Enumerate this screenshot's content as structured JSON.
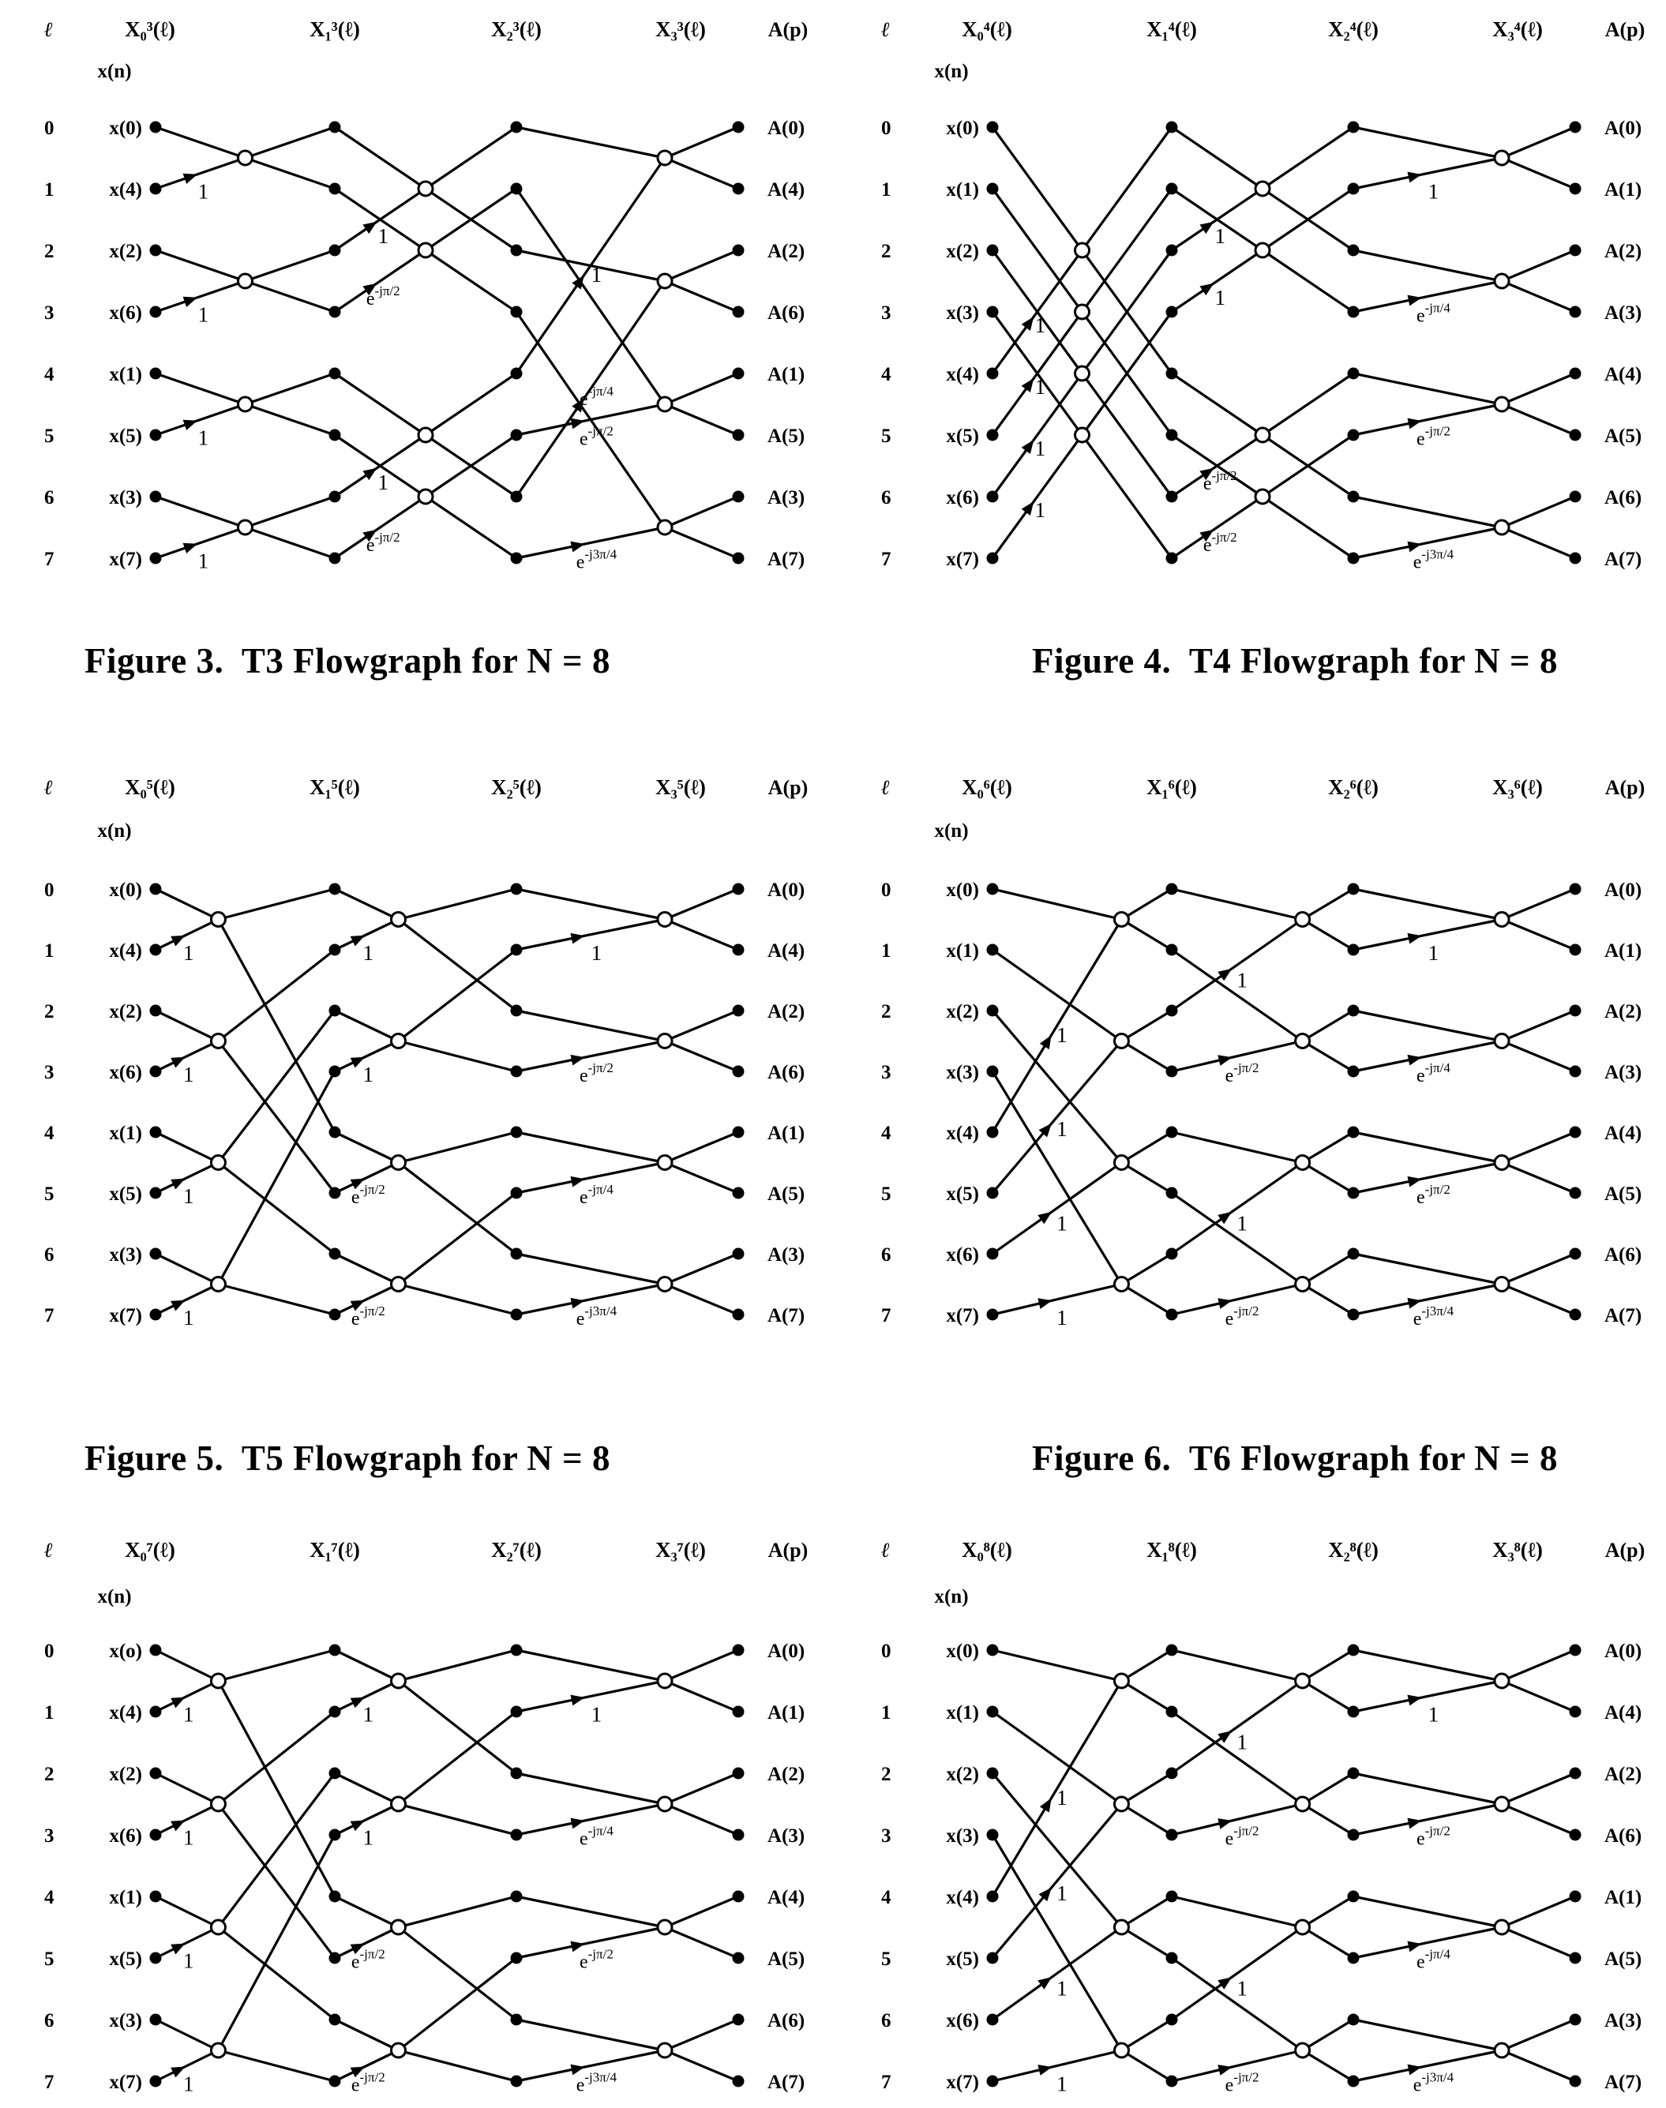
{
  "page": {
    "background": "#ffffff",
    "ink": "#000000"
  },
  "figures": [
    {
      "id": "fig3",
      "caption": "Figure 3.  T3 Flowgraph for N = 8",
      "header": {
        "ell": "ℓ",
        "xn": "x(n)",
        "ap": "A(p)",
        "stages": [
          "X₀³(ℓ)",
          "X₁³(ℓ)",
          "X₂³(ℓ)",
          "X₃³(ℓ)"
        ]
      },
      "row_indices": [
        "0",
        "1",
        "2",
        "3",
        "4",
        "5",
        "6",
        "7"
      ],
      "inputs": [
        "x(0)",
        "x(4)",
        "x(2)",
        "x(6)",
        "x(1)",
        "x(5)",
        "x(3)",
        "x(7)"
      ],
      "outputs": [
        "A(0)",
        "A(4)",
        "A(2)",
        "A(6)",
        "A(1)",
        "A(5)",
        "A(3)",
        "A(7)"
      ],
      "butterflies": [
        [
          {
            "a": 0,
            "b": 1,
            "oa": 0,
            "ob": 1,
            "w": "1"
          },
          {
            "a": 2,
            "b": 3,
            "oa": 2,
            "ob": 3,
            "w": "1"
          },
          {
            "a": 4,
            "b": 5,
            "oa": 4,
            "ob": 5,
            "w": "1"
          },
          {
            "a": 6,
            "b": 7,
            "oa": 6,
            "ob": 7,
            "w": "1"
          }
        ],
        [
          {
            "a": 0,
            "b": 2,
            "oa": 0,
            "ob": 2,
            "w": "1"
          },
          {
            "a": 1,
            "b": 3,
            "oa": 1,
            "ob": 3,
            "w": "e^{-jπ/2}"
          },
          {
            "a": 4,
            "b": 6,
            "oa": 4,
            "ob": 6,
            "w": "1"
          },
          {
            "a": 5,
            "b": 7,
            "oa": 5,
            "ob": 7,
            "w": "e^{-jπ/2}"
          }
        ],
        [
          {
            "a": 0,
            "b": 4,
            "oa": 0,
            "ob": 1,
            "w": "1"
          },
          {
            "a": 2,
            "b": 6,
            "oa": 2,
            "ob": 3,
            "w": "e^{-jπ/4}"
          },
          {
            "a": 1,
            "b": 5,
            "oa": 4,
            "ob": 5,
            "w": "e^{-jπ/2}"
          },
          {
            "a": 3,
            "b": 7,
            "oa": 6,
            "ob": 7,
            "w": "e^{-j3π/4}"
          }
        ]
      ]
    },
    {
      "id": "fig4",
      "caption": "Figure 4.  T4 Flowgraph for N = 8",
      "header": {
        "ell": "ℓ",
        "xn": "x(n)",
        "ap": "A(p)",
        "stages": [
          "X₀⁴(ℓ)",
          "X₁⁴(ℓ)",
          "X₂⁴(ℓ)",
          "X₃⁴(ℓ)"
        ]
      },
      "row_indices": [
        "0",
        "1",
        "2",
        "3",
        "4",
        "5",
        "6",
        "7"
      ],
      "inputs": [
        "x(0)",
        "x(1)",
        "x(2)",
        "x(3)",
        "x(4)",
        "x(5)",
        "x(6)",
        "x(7)"
      ],
      "outputs": [
        "A(0)",
        "A(1)",
        "A(2)",
        "A(3)",
        "A(4)",
        "A(5)",
        "A(6)",
        "A(7)"
      ],
      "butterflies": [
        [
          {
            "a": 0,
            "b": 4,
            "oa": 0,
            "ob": 4,
            "w": "1"
          },
          {
            "a": 1,
            "b": 5,
            "oa": 1,
            "ob": 5,
            "w": "1"
          },
          {
            "a": 2,
            "b": 6,
            "oa": 2,
            "ob": 6,
            "w": "1"
          },
          {
            "a": 3,
            "b": 7,
            "oa": 3,
            "ob": 7,
            "w": "1"
          }
        ],
        [
          {
            "a": 0,
            "b": 2,
            "oa": 0,
            "ob": 2,
            "w": "1"
          },
          {
            "a": 1,
            "b": 3,
            "oa": 1,
            "ob": 3,
            "w": "1"
          },
          {
            "a": 4,
            "b": 6,
            "oa": 4,
            "ob": 6,
            "w": "e^{-jπ/2}"
          },
          {
            "a": 5,
            "b": 7,
            "oa": 5,
            "ob": 7,
            "w": "e^{-jπ/2}"
          }
        ],
        [
          {
            "a": 0,
            "b": 1,
            "oa": 0,
            "ob": 1,
            "w": "1"
          },
          {
            "a": 2,
            "b": 3,
            "oa": 2,
            "ob": 3,
            "w": "e^{-jπ/4}"
          },
          {
            "a": 4,
            "b": 5,
            "oa": 4,
            "ob": 5,
            "w": "e^{-jπ/2}"
          },
          {
            "a": 6,
            "b": 7,
            "oa": 6,
            "ob": 7,
            "w": "e^{-j3π/4}"
          }
        ]
      ]
    },
    {
      "id": "fig5",
      "caption": "Figure 5.  T5 Flowgraph for N = 8",
      "header": {
        "ell": "ℓ",
        "xn": "x(n)",
        "ap": "A(p)",
        "stages": [
          "X₀⁵(ℓ)",
          "X₁⁵(ℓ)",
          "X₂⁵(ℓ)",
          "X₃⁵(ℓ)"
        ]
      },
      "row_indices": [
        "0",
        "1",
        "2",
        "3",
        "4",
        "5",
        "6",
        "7"
      ],
      "inputs": [
        "x(0)",
        "x(4)",
        "x(2)",
        "x(6)",
        "x(1)",
        "x(5)",
        "x(3)",
        "x(7)"
      ],
      "outputs": [
        "A(0)",
        "A(4)",
        "A(2)",
        "A(6)",
        "A(1)",
        "A(5)",
        "A(3)",
        "A(7)"
      ],
      "butterflies": [
        [
          {
            "a": 0,
            "b": 1,
            "oa": 0,
            "ob": 4,
            "w": "1"
          },
          {
            "a": 2,
            "b": 3,
            "oa": 1,
            "ob": 5,
            "w": "1"
          },
          {
            "a": 4,
            "b": 5,
            "oa": 2,
            "ob": 6,
            "w": "1"
          },
          {
            "a": 6,
            "b": 7,
            "oa": 3,
            "ob": 7,
            "w": "1"
          }
        ],
        [
          {
            "a": 0,
            "b": 1,
            "oa": 0,
            "ob": 2,
            "w": "1"
          },
          {
            "a": 2,
            "b": 3,
            "oa": 1,
            "ob": 3,
            "w": "1"
          },
          {
            "a": 4,
            "b": 5,
            "oa": 4,
            "ob": 6,
            "w": "e^{-jπ/2}"
          },
          {
            "a": 6,
            "b": 7,
            "oa": 5,
            "ob": 7,
            "w": "e^{-jπ/2}"
          }
        ],
        [
          {
            "a": 0,
            "b": 1,
            "oa": 0,
            "ob": 1,
            "w": "1"
          },
          {
            "a": 2,
            "b": 3,
            "oa": 2,
            "ob": 3,
            "w": "e^{-jπ/2}"
          },
          {
            "a": 4,
            "b": 5,
            "oa": 4,
            "ob": 5,
            "w": "e^{-jπ/4}"
          },
          {
            "a": 6,
            "b": 7,
            "oa": 6,
            "ob": 7,
            "w": "e^{-j3π/4}"
          }
        ]
      ]
    },
    {
      "id": "fig6",
      "caption": "Figure 6.  T6 Flowgraph for N = 8",
      "header": {
        "ell": "ℓ",
        "xn": "x(n)",
        "ap": "A(p)",
        "stages": [
          "X₀⁶(ℓ)",
          "X₁⁶(ℓ)",
          "X₂⁶(ℓ)",
          "X₃⁶(ℓ)"
        ]
      },
      "row_indices": [
        "0",
        "1",
        "2",
        "3",
        "4",
        "5",
        "6",
        "7"
      ],
      "inputs": [
        "x(0)",
        "x(1)",
        "x(2)",
        "x(3)",
        "x(4)",
        "x(5)",
        "x(6)",
        "x(7)"
      ],
      "outputs": [
        "A(0)",
        "A(1)",
        "A(2)",
        "A(3)",
        "A(4)",
        "A(5)",
        "A(6)",
        "A(7)"
      ],
      "butterflies": [
        [
          {
            "a": 0,
            "b": 4,
            "oa": 0,
            "ob": 1,
            "w": "1"
          },
          {
            "a": 1,
            "b": 5,
            "oa": 2,
            "ob": 3,
            "w": "1"
          },
          {
            "a": 2,
            "b": 6,
            "oa": 4,
            "ob": 5,
            "w": "1"
          },
          {
            "a": 3,
            "b": 7,
            "oa": 6,
            "ob": 7,
            "w": "1"
          }
        ],
        [
          {
            "a": 0,
            "b": 2,
            "oa": 0,
            "ob": 1,
            "w": "1"
          },
          {
            "a": 1,
            "b": 3,
            "oa": 2,
            "ob": 3,
            "w": "e^{-jπ/2}"
          },
          {
            "a": 4,
            "b": 6,
            "oa": 4,
            "ob": 5,
            "w": "1"
          },
          {
            "a": 5,
            "b": 7,
            "oa": 6,
            "ob": 7,
            "w": "e^{-jπ/2}"
          }
        ],
        [
          {
            "a": 0,
            "b": 1,
            "oa": 0,
            "ob": 1,
            "w": "1"
          },
          {
            "a": 2,
            "b": 3,
            "oa": 2,
            "ob": 3,
            "w": "e^{-jπ/4}"
          },
          {
            "a": 4,
            "b": 5,
            "oa": 4,
            "ob": 5,
            "w": "e^{-jπ/2}"
          },
          {
            "a": 6,
            "b": 7,
            "oa": 6,
            "ob": 7,
            "w": "e^{-j3π/4}"
          }
        ]
      ]
    },
    {
      "id": "fig7",
      "caption": null,
      "header": {
        "ell": "ℓ",
        "xn": "x(n)",
        "ap": "A(p)",
        "stages": [
          "X₀⁷(ℓ)",
          "X₁⁷(ℓ)",
          "X₂⁷(ℓ)",
          "X₃⁷(ℓ)"
        ]
      },
      "row_indices": [
        "0",
        "1",
        "2",
        "3",
        "4",
        "5",
        "6",
        "7"
      ],
      "inputs": [
        "x(o)",
        "x(4)",
        "x(2)",
        "x(6)",
        "x(1)",
        "x(5)",
        "x(3)",
        "x(7)"
      ],
      "outputs": [
        "A(0)",
        "A(1)",
        "A(2)",
        "A(3)",
        "A(4)",
        "A(5)",
        "A(6)",
        "A(7)"
      ],
      "butterflies": [
        [
          {
            "a": 0,
            "b": 1,
            "oa": 0,
            "ob": 4,
            "w": "1"
          },
          {
            "a": 2,
            "b": 3,
            "oa": 1,
            "ob": 5,
            "w": "1"
          },
          {
            "a": 4,
            "b": 5,
            "oa": 2,
            "ob": 6,
            "w": "1"
          },
          {
            "a": 6,
            "b": 7,
            "oa": 3,
            "ob": 7,
            "w": "1"
          }
        ],
        [
          {
            "a": 0,
            "b": 1,
            "oa": 0,
            "ob": 2,
            "w": "1"
          },
          {
            "a": 2,
            "b": 3,
            "oa": 1,
            "ob": 3,
            "w": "1"
          },
          {
            "a": 4,
            "b": 5,
            "oa": 4,
            "ob": 6,
            "w": "e^{-jπ/2}"
          },
          {
            "a": 6,
            "b": 7,
            "oa": 5,
            "ob": 7,
            "w": "e^{-jπ/2}"
          }
        ],
        [
          {
            "a": 0,
            "b": 1,
            "oa": 0,
            "ob": 1,
            "w": "1"
          },
          {
            "a": 2,
            "b": 3,
            "oa": 2,
            "ob": 3,
            "w": "e^{-jπ/4}"
          },
          {
            "a": 4,
            "b": 5,
            "oa": 4,
            "ob": 5,
            "w": "e^{-jπ/2}"
          },
          {
            "a": 6,
            "b": 7,
            "oa": 6,
            "ob": 7,
            "w": "e^{-j3π/4}"
          }
        ]
      ]
    },
    {
      "id": "fig8",
      "caption": null,
      "header": {
        "ell": "ℓ",
        "xn": "x(n)",
        "ap": "A(p)",
        "stages": [
          "X₀⁸(ℓ)",
          "X₁⁸(ℓ)",
          "X₂⁸(ℓ)",
          "X₃⁸(ℓ)"
        ]
      },
      "row_indices": [
        "0",
        "1",
        "2",
        "3",
        "4",
        "5",
        "6",
        "7"
      ],
      "inputs": [
        "x(0)",
        "x(1)",
        "x(2)",
        "x(3)",
        "x(4)",
        "x(5)",
        "x(6)",
        "x(7)"
      ],
      "outputs": [
        "A(0)",
        "A(4)",
        "A(2)",
        "A(6)",
        "A(1)",
        "A(5)",
        "A(3)",
        "A(7)"
      ],
      "butterflies": [
        [
          {
            "a": 0,
            "b": 4,
            "oa": 0,
            "ob": 1,
            "w": "1"
          },
          {
            "a": 1,
            "b": 5,
            "oa": 2,
            "ob": 3,
            "w": "1"
          },
          {
            "a": 2,
            "b": 6,
            "oa": 4,
            "ob": 5,
            "w": "1"
          },
          {
            "a": 3,
            "b": 7,
            "oa": 6,
            "ob": 7,
            "w": "1"
          }
        ],
        [
          {
            "a": 0,
            "b": 2,
            "oa": 0,
            "ob": 1,
            "w": "1"
          },
          {
            "a": 1,
            "b": 3,
            "oa": 2,
            "ob": 3,
            "w": "e^{-jπ/2}"
          },
          {
            "a": 4,
            "b": 6,
            "oa": 4,
            "ob": 5,
            "w": "1"
          },
          {
            "a": 5,
            "b": 7,
            "oa": 6,
            "ob": 7,
            "w": "e^{-jπ/2}"
          }
        ],
        [
          {
            "a": 0,
            "b": 1,
            "oa": 0,
            "ob": 1,
            "w": "1"
          },
          {
            "a": 2,
            "b": 3,
            "oa": 2,
            "ob": 3,
            "w": "e^{-jπ/2}"
          },
          {
            "a": 4,
            "b": 5,
            "oa": 4,
            "ob": 5,
            "w": "e^{-jπ/4}"
          },
          {
            "a": 6,
            "b": 7,
            "oa": 6,
            "ob": 7,
            "w": "e^{-j3π/4}"
          }
        ]
      ]
    }
  ]
}
